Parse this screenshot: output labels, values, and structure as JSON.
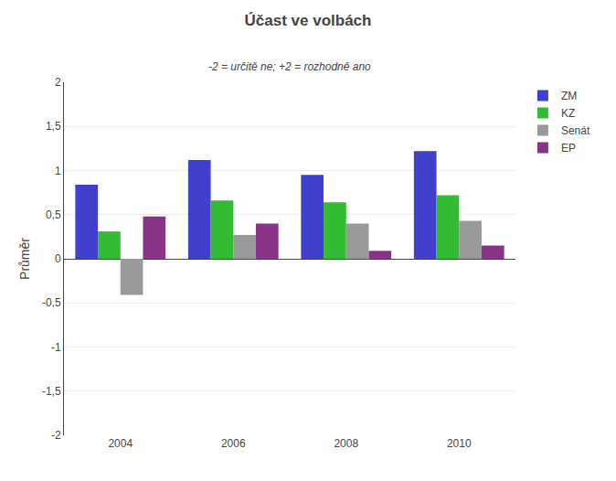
{
  "chart_data": {
    "type": "bar",
    "title": "Účast ve volbách",
    "subtitle": "-2 = určitě ne; +2 = rozhodně ano",
    "ylabel": "Průměr",
    "categories": [
      "2004",
      "2006",
      "2008",
      "2010"
    ],
    "series": [
      {
        "name": "ZM",
        "color": "#4040CC",
        "values": [
          0.84,
          1.12,
          0.95,
          1.22
        ]
      },
      {
        "name": "KZ",
        "color": "#33BB33",
        "values": [
          0.31,
          0.66,
          0.64,
          0.72
        ]
      },
      {
        "name": "Senát",
        "color": "#999999",
        "values": [
          -0.41,
          0.27,
          0.4,
          0.43
        ]
      },
      {
        "name": "EP",
        "color": "#883388",
        "values": [
          0.48,
          0.4,
          0.09,
          0.15
        ]
      }
    ],
    "ylim": [
      -2,
      2
    ],
    "yticks": [
      -2,
      {
        "value": -1.5,
        "label": "-1,5"
      },
      -1,
      {
        "value": -0.5,
        "label": "-0,5"
      },
      0,
      {
        "value": 0.5,
        "label": "0,5"
      },
      1,
      {
        "value": 1.5,
        "label": "1,5"
      },
      2
    ],
    "grid": true,
    "legend": "right"
  }
}
